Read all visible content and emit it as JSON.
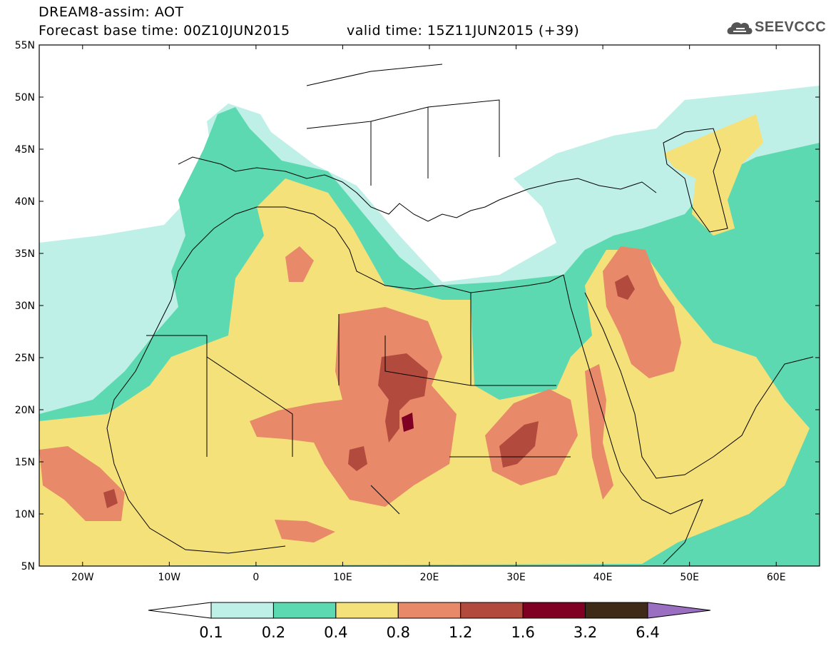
{
  "header": {
    "line1": "DREAM8-assim: AOT",
    "line2": "Forecast base time: 00Z10JUN2015",
    "valid": "valid time: 15Z11JUN2015 (+39)",
    "logo_text": "SEEVCCC",
    "logo_icon": "cloud-icon"
  },
  "map": {
    "lon_range": [
      -25,
      65
    ],
    "lat_range": [
      5,
      55
    ],
    "lon_ticks": [
      {
        "value": -20,
        "label": "20W"
      },
      {
        "value": -10,
        "label": "10W"
      },
      {
        "value": 0,
        "label": "0"
      },
      {
        "value": 10,
        "label": "10E"
      },
      {
        "value": 20,
        "label": "20E"
      },
      {
        "value": 30,
        "label": "30E"
      },
      {
        "value": 40,
        "label": "40E"
      },
      {
        "value": 50,
        "label": "50E"
      },
      {
        "value": 60,
        "label": "60E"
      }
    ],
    "lat_ticks": [
      {
        "value": 5,
        "label": "5N"
      },
      {
        "value": 10,
        "label": "10N"
      },
      {
        "value": 15,
        "label": "15N"
      },
      {
        "value": 20,
        "label": "20N"
      },
      {
        "value": 25,
        "label": "25N"
      },
      {
        "value": 30,
        "label": "30N"
      },
      {
        "value": 35,
        "label": "35N"
      },
      {
        "value": 40,
        "label": "40N"
      },
      {
        "value": 45,
        "label": "45N"
      },
      {
        "value": 50,
        "label": "50N"
      },
      {
        "value": 55,
        "label": "55N"
      }
    ]
  },
  "colorbar": {
    "labels": [
      "0.1",
      "0.2",
      "0.4",
      "0.8",
      "1.2",
      "1.6",
      "3.2",
      "6.4"
    ],
    "colors": [
      "#ffffff",
      "#bff0e8",
      "#5cd9b0",
      "#f5e17a",
      "#e8896a",
      "#b34a3e",
      "#800024",
      "#3f2a18",
      "#9a6ec0"
    ]
  }
}
